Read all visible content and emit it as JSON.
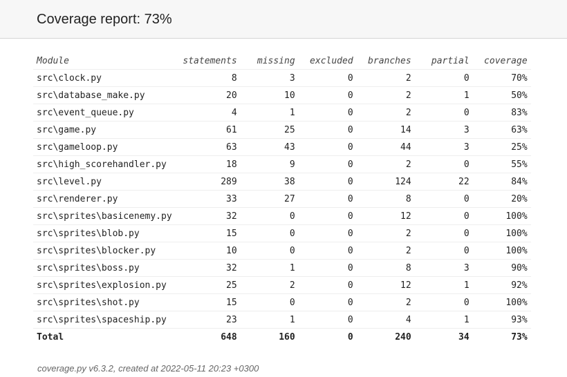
{
  "header": {
    "title": "Coverage report: 73%"
  },
  "table": {
    "columns": [
      "Module",
      "statements",
      "missing",
      "excluded",
      "branches",
      "partial",
      "coverage"
    ],
    "rows": [
      [
        "src\\clock.py",
        "8",
        "3",
        "0",
        "2",
        "0",
        "70%"
      ],
      [
        "src\\database_make.py",
        "20",
        "10",
        "0",
        "2",
        "1",
        "50%"
      ],
      [
        "src\\event_queue.py",
        "4",
        "1",
        "0",
        "2",
        "0",
        "83%"
      ],
      [
        "src\\game.py",
        "61",
        "25",
        "0",
        "14",
        "3",
        "63%"
      ],
      [
        "src\\gameloop.py",
        "63",
        "43",
        "0",
        "44",
        "3",
        "25%"
      ],
      [
        "src\\high_scorehandler.py",
        "18",
        "9",
        "0",
        "2",
        "0",
        "55%"
      ],
      [
        "src\\level.py",
        "289",
        "38",
        "0",
        "124",
        "22",
        "84%"
      ],
      [
        "src\\renderer.py",
        "33",
        "27",
        "0",
        "8",
        "0",
        "20%"
      ],
      [
        "src\\sprites\\basicenemy.py",
        "32",
        "0",
        "0",
        "12",
        "0",
        "100%"
      ],
      [
        "src\\sprites\\blob.py",
        "15",
        "0",
        "0",
        "2",
        "0",
        "100%"
      ],
      [
        "src\\sprites\\blocker.py",
        "10",
        "0",
        "0",
        "2",
        "0",
        "100%"
      ],
      [
        "src\\sprites\\boss.py",
        "32",
        "1",
        "0",
        "8",
        "3",
        "90%"
      ],
      [
        "src\\sprites\\explosion.py",
        "25",
        "2",
        "0",
        "12",
        "1",
        "92%"
      ],
      [
        "src\\sprites\\shot.py",
        "15",
        "0",
        "0",
        "2",
        "0",
        "100%"
      ],
      [
        "src\\sprites\\spaceship.py",
        "23",
        "1",
        "0",
        "4",
        "1",
        "93%"
      ]
    ],
    "total": [
      "Total",
      "648",
      "160",
      "0",
      "240",
      "34",
      "73%"
    ]
  },
  "footer": {
    "text": "coverage.py v6.3.2, created at 2022-05-11 20:23 +0300"
  }
}
